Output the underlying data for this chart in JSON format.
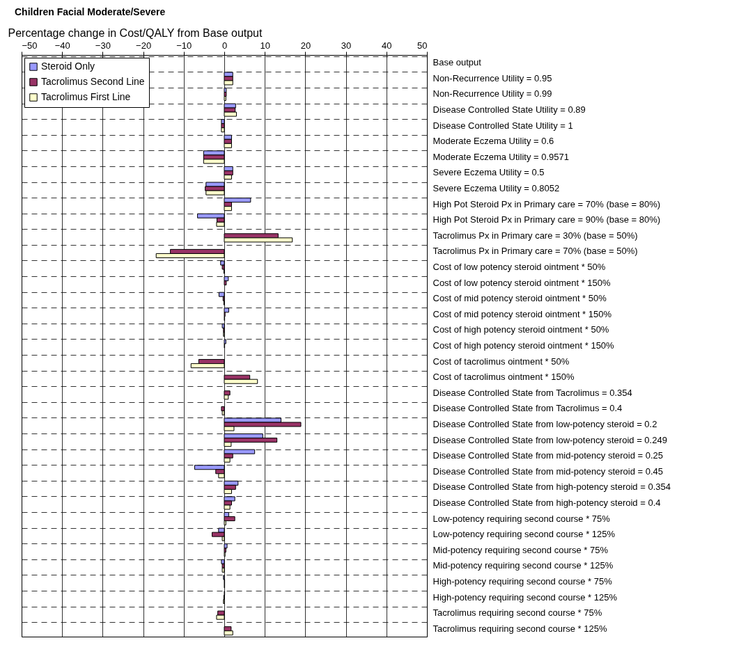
{
  "chart_data": {
    "type": "bar",
    "orientation": "horizontal",
    "title": "Children Facial Moderate/Severe",
    "xlabel": "Percentage change in Cost/QALY from Base output",
    "categories": [
      "Base output",
      "Non-Recurrence Utility = 0.95",
      "Non-Recurrence Utility = 0.99",
      "Disease Controlled State Utility = 0.89",
      "Disease Controlled State Utility = 1",
      "Moderate Eczema Utility = 0.6",
      "Moderate Eczema Utility = 0.9571",
      "Severe Eczema Utility = 0.5",
      "Severe Eczema Utility = 0.8052",
      "High Pot Steroid Px in Primary care = 70% (base = 80%)",
      "High Pot Steroid Px in Primary care = 90% (base = 80%)",
      "Tacrolimus Px in Primary care = 30% (base = 50%)",
      "Tacrolimus Px in Primary care = 70% (base = 50%)",
      "Cost of low potency steroid ointment * 50%",
      "Cost of low potency steroid ointment * 150%",
      "Cost of mid potency steroid ointment * 50%",
      "Cost of mid potency steroid ointment * 150%",
      "Cost of high potency steroid ointment * 50%",
      "Cost of high potency steroid ointment * 150%",
      "Cost of tacrolimus ointment * 50%",
      "Cost of tacrolimus ointment * 150%",
      "Disease Controlled State from Tacrolimus  = 0.354",
      "Disease Controlled State from Tacrolimus  = 0.4",
      "Disease Controlled State from low-potency steroid = 0.2",
      "Disease Controlled State from low-potency steroid = 0.249",
      "Disease Controlled State from mid-potency steroid = 0.25",
      "Disease Controlled State from mid-potency steroid = 0.45",
      "Disease Controlled State from high-potency steroid = 0.354",
      "Disease Controlled State from high-potency steroid  = 0.4",
      "Low-potency requiring second course * 75%",
      "Low-potency requiring second course * 125%",
      "Mid-potency requiring second course * 75%",
      "Mid-potency requiring second course * 125%",
      "High-potency requiring second course * 75%",
      "High-potency requiring second course * 125%",
      "Tacrolimus requiring second course * 75%",
      "Tacrolimus requiring second course * 125%"
    ],
    "series": [
      {
        "name": "Steroid Only",
        "color": "#9999ff",
        "values": [
          null,
          2.1,
          0.5,
          2.8,
          -0.7,
          1.8,
          -5.1,
          2.1,
          -4.5,
          6.5,
          -6.6,
          null,
          null,
          -0.9,
          1.0,
          -1.3,
          1.1,
          -0.5,
          0.4,
          null,
          null,
          null,
          null,
          14.0,
          9.5,
          7.5,
          -7.3,
          3.4,
          2.6,
          1.1,
          -1.4,
          0.7,
          -0.7,
          -0.2,
          0.1,
          null,
          null
        ]
      },
      {
        "name": "Tacrolimus Second Line",
        "color": "#993366",
        "values": [
          null,
          2.1,
          0.5,
          2.7,
          -0.7,
          1.8,
          -5.1,
          2.1,
          -4.7,
          1.8,
          -1.8,
          13.3,
          -13.3,
          -0.5,
          0.5,
          -0.3,
          0.2,
          -0.2,
          0.1,
          -6.3,
          6.3,
          1.4,
          -0.7,
          18.9,
          13.0,
          2.1,
          -2.1,
          2.8,
          1.8,
          2.6,
          -3.0,
          0.4,
          -0.5,
          0.1,
          -0.1,
          -1.6,
          1.7
        ]
      },
      {
        "name": "Tacrolimus First Line",
        "color": "#ffffcc",
        "values": [
          null,
          2.1,
          0.4,
          3.0,
          -0.7,
          1.8,
          -5.1,
          1.8,
          -4.5,
          1.8,
          -1.9,
          16.8,
          -16.8,
          -0.1,
          null,
          -0.1,
          0.1,
          -0.2,
          null,
          -8.2,
          8.2,
          1.0,
          -0.5,
          2.4,
          1.7,
          1.4,
          -1.4,
          1.8,
          1.4,
          0.4,
          -0.5,
          0.2,
          -0.5,
          0.1,
          -0.2,
          -1.9,
          2.1
        ]
      }
    ],
    "xlim": [
      -50,
      50
    ],
    "xticks": [
      -50,
      -40,
      -30,
      -20,
      -10,
      0,
      10,
      20,
      30,
      40,
      50
    ],
    "grid": true,
    "legend": "top left"
  }
}
